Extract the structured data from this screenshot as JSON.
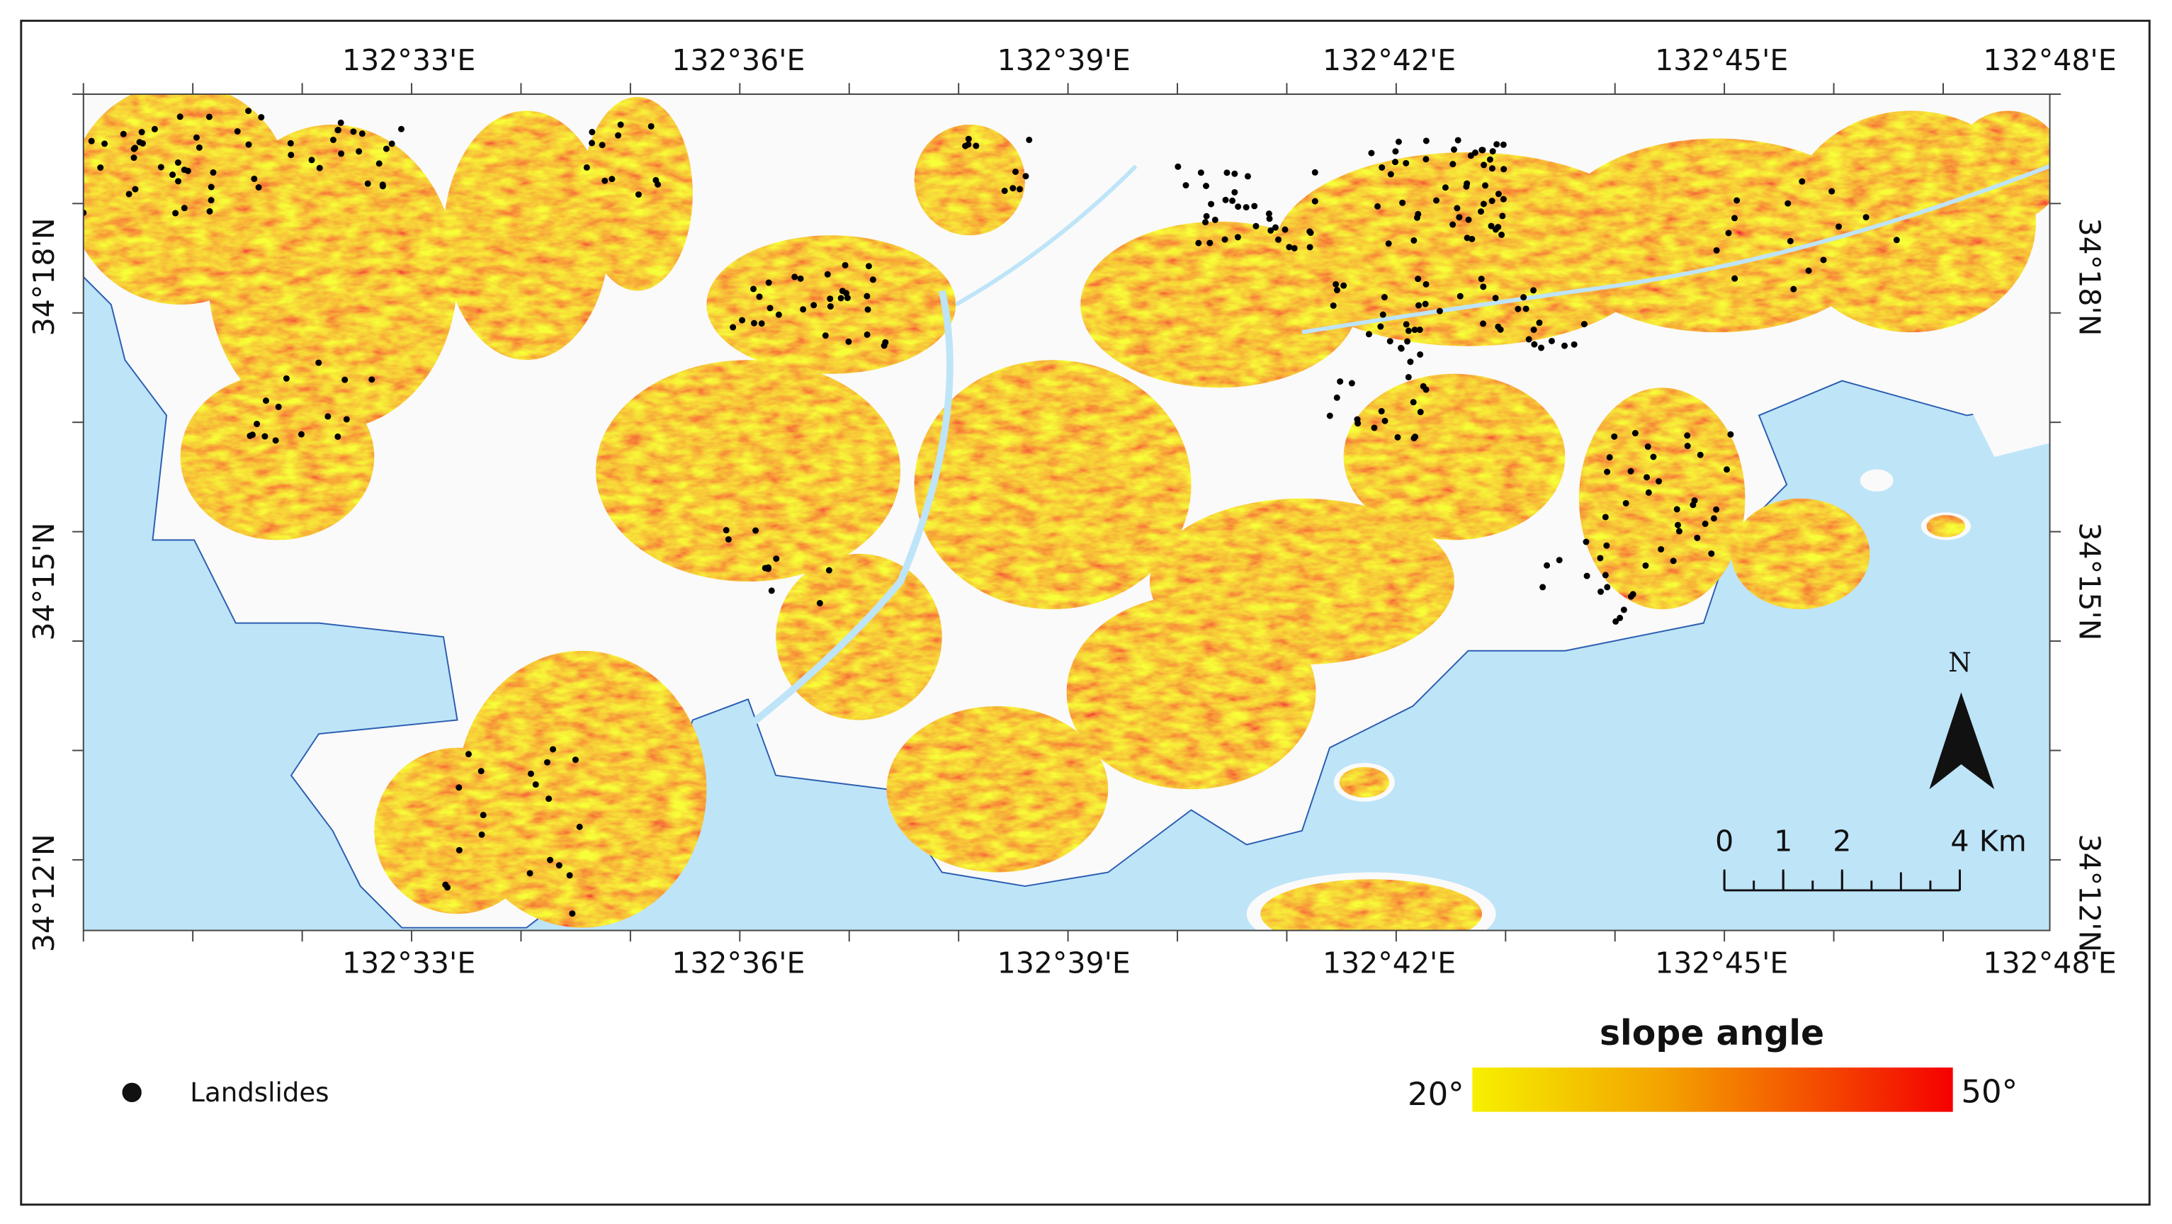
{
  "map": {
    "lon_labels": [
      "132°33'E",
      "132°36'E",
      "132°39'E",
      "132°42'E",
      "132°45'E",
      "132°48'E"
    ],
    "lat_labels": [
      "34°12'N",
      "34°15'N",
      "34°18'N"
    ],
    "north": "N",
    "scale_bar": {
      "ticks": [
        0,
        1,
        2,
        4
      ],
      "unit": "Km"
    },
    "legend": {
      "landslides": "Landslides"
    },
    "colorbar": {
      "title": "slope angle",
      "min": "20°",
      "max": "50°"
    }
  }
}
